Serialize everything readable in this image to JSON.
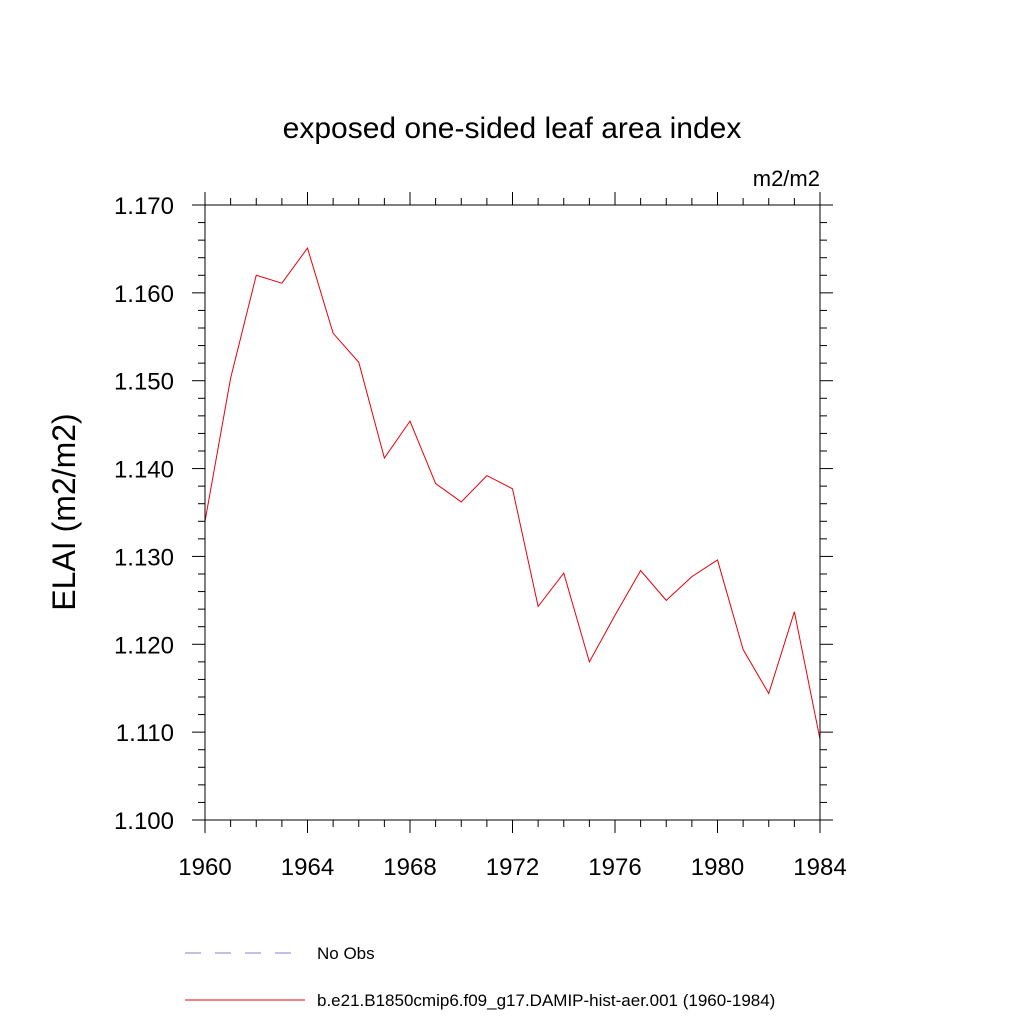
{
  "chart_data": {
    "type": "line",
    "title": "exposed one-sided leaf area index",
    "units_label": "m2/m2",
    "ylabel": "ELAI  (m2/m2)",
    "xlabel": "",
    "xlim": [
      1960,
      1984
    ],
    "ylim": [
      1.1,
      1.17
    ],
    "x_ticks": [
      1960,
      1964,
      1968,
      1972,
      1976,
      1980,
      1984
    ],
    "y_ticks": [
      "1.100",
      "1.110",
      "1.120",
      "1.130",
      "1.140",
      "1.150",
      "1.160",
      "1.170"
    ],
    "grid": false,
    "legend_position": "bottom",
    "series": [
      {
        "name": "No Obs",
        "color": "#8a7fd1",
        "style": "dashed",
        "x": [],
        "values": []
      },
      {
        "name": "b.e21.B1850cmip6.f09_g17.DAMIP-hist-aer.001 (1960-1984)",
        "color": "#e8000b",
        "style": "solid",
        "x": [
          1960,
          1961,
          1962,
          1963,
          1964,
          1965,
          1966,
          1967,
          1968,
          1969,
          1970,
          1971,
          1972,
          1973,
          1974,
          1975,
          1976,
          1977,
          1978,
          1979,
          1980,
          1981,
          1982,
          1983,
          1984
        ],
        "values": [
          1.134,
          1.1503,
          1.162,
          1.1611,
          1.1651,
          1.1554,
          1.1521,
          1.1412,
          1.1454,
          1.1383,
          1.1362,
          1.1392,
          1.1377,
          1.1243,
          1.1281,
          1.118,
          1.1233,
          1.1284,
          1.125,
          1.1277,
          1.1296,
          1.1194,
          1.1144,
          1.1237,
          1.1092
        ]
      }
    ]
  }
}
